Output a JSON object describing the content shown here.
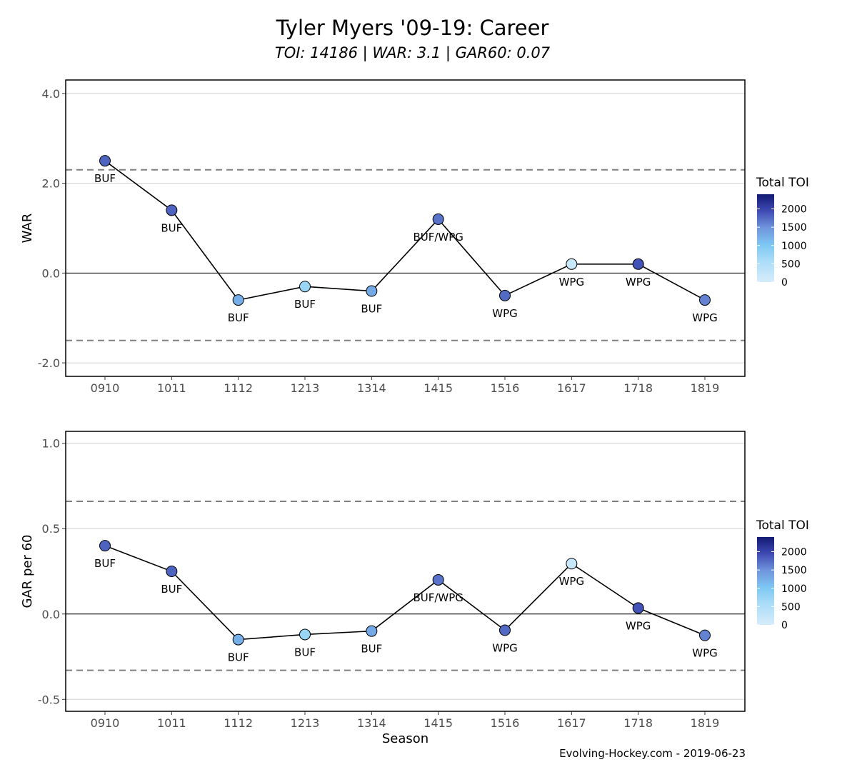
{
  "title": "Tyler Myers '09-19: Career",
  "subtitle": "TOI: 14186 | WAR: 3.1 | GAR60: 0.07",
  "caption": "Evolving-Hockey.com - 2019-06-23",
  "colors": {
    "line": "#000000",
    "reference_dash": "#808080",
    "grid": "#d0d0d0",
    "toi_scale": [
      "#d6ecfb",
      "#7ec8f2",
      "#6f95dc",
      "#3c47b0",
      "#121a74"
    ]
  },
  "chart_data": [
    {
      "type": "line",
      "xlabel": "",
      "ylabel": "WAR",
      "ylim": [
        -2.3,
        4.3
      ],
      "y_ticks": [
        -2.0,
        0.0,
        2.0,
        4.0
      ],
      "y_tick_labels": [
        "-2.0",
        "0.0",
        "2.0",
        "4.0"
      ],
      "categories": [
        "0910",
        "1011",
        "1112",
        "1213",
        "1314",
        "1415",
        "1516",
        "1617",
        "1718",
        "1819"
      ],
      "values": [
        2.5,
        1.4,
        -0.6,
        -0.3,
        -0.4,
        1.2,
        -0.5,
        0.2,
        0.2,
        -0.6
      ],
      "teams": [
        "BUF",
        "BUF",
        "BUF",
        "BUF",
        "BUF",
        "BUF/WPG",
        "WPG",
        "WPG",
        "WPG",
        "WPG"
      ],
      "toi": [
        1800,
        1800,
        1250,
        750,
        1300,
        1700,
        1750,
        200,
        1900,
        1600
      ],
      "reference_lines": [
        2.3,
        -1.5
      ],
      "zero_line": 0,
      "legend": {
        "title": "Total TOI",
        "position": "right",
        "ticks": [
          2000,
          1500,
          1000,
          500,
          0
        ],
        "max": 2400
      }
    },
    {
      "type": "line",
      "xlabel": "Season",
      "ylabel": "GAR per 60",
      "ylim": [
        -0.57,
        1.07
      ],
      "y_ticks": [
        -0.5,
        0.0,
        0.5,
        1.0
      ],
      "y_tick_labels": [
        "-0.5",
        "0.0",
        "0.5",
        "1.0"
      ],
      "categories": [
        "0910",
        "1011",
        "1112",
        "1213",
        "1314",
        "1415",
        "1516",
        "1617",
        "1718",
        "1819"
      ],
      "values": [
        0.4,
        0.25,
        -0.15,
        -0.12,
        -0.1,
        0.2,
        -0.095,
        0.295,
        0.035,
        -0.125
      ],
      "teams": [
        "BUF",
        "BUF",
        "BUF",
        "BUF",
        "BUF",
        "BUF/WPG",
        "WPG",
        "WPG",
        "WPG",
        "WPG"
      ],
      "toi": [
        1800,
        1800,
        1250,
        750,
        1300,
        1700,
        1750,
        200,
        1900,
        1600
      ],
      "reference_lines": [
        0.66,
        -0.33
      ],
      "zero_line": 0,
      "legend": {
        "title": "Total TOI",
        "position": "right",
        "ticks": [
          2000,
          1500,
          1000,
          500,
          0
        ],
        "max": 2400
      }
    }
  ]
}
